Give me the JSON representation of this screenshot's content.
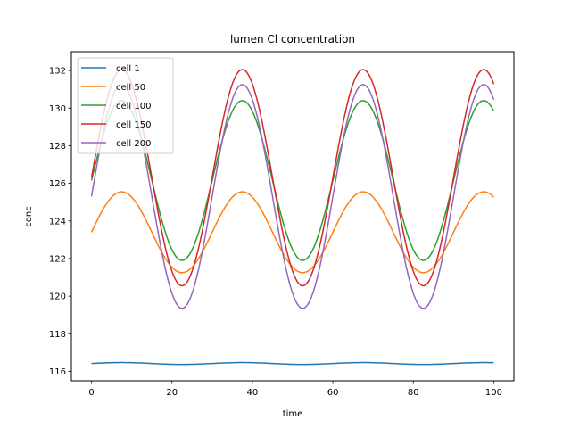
{
  "chart_data": {
    "type": "line",
    "title": "lumen Cl concentration",
    "xlabel": "time",
    "ylabel": "conc",
    "xlim": [
      -5,
      105
    ],
    "ylim": [
      115.5,
      133.0
    ],
    "xticks": [
      0,
      20,
      40,
      60,
      80,
      100
    ],
    "yticks": [
      116,
      118,
      120,
      122,
      124,
      126,
      128,
      130,
      132
    ],
    "grid": false,
    "legend_position": "top-left",
    "series": [
      {
        "name": "cell 1",
        "color": "#1f77b4",
        "mean": 116.42,
        "amplitude": 0.05,
        "period": 30,
        "phase_peak": 7.5,
        "x_start": 0,
        "x_end": 100
      },
      {
        "name": "cell 50",
        "color": "#ff7f0e",
        "mean": 123.4,
        "amplitude": 2.15,
        "period": 30,
        "phase_peak": 7.5,
        "x_start": 0,
        "x_end": 100
      },
      {
        "name": "cell 100",
        "color": "#2ca02c",
        "mean": 126.15,
        "amplitude": 4.25,
        "period": 30,
        "phase_peak": 7.5,
        "x_start": 0,
        "x_end": 100
      },
      {
        "name": "cell 150",
        "color": "#d62728",
        "mean": 126.3,
        "amplitude": 5.75,
        "period": 30,
        "phase_peak": 7.5,
        "x_start": 0,
        "x_end": 100
      },
      {
        "name": "cell 200",
        "color": "#9467bd",
        "mean": 125.3,
        "amplitude": 5.95,
        "period": 30,
        "phase_peak": 7.5,
        "x_start": 0,
        "x_end": 100
      }
    ]
  }
}
